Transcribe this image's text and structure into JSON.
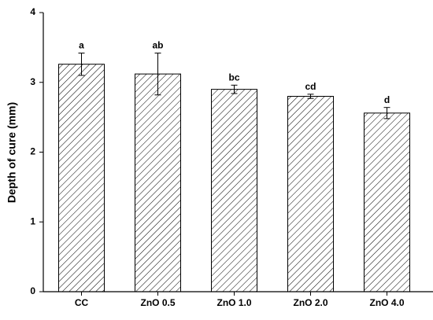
{
  "chart_data": {
    "type": "bar",
    "y_label": "Depth of cure (mm)",
    "categories": [
      "CC",
      "ZnO 0.5",
      "ZnO 1.0",
      "ZnO 2.0",
      "ZnO 4.0"
    ],
    "values": [
      3.26,
      3.12,
      2.9,
      2.8,
      2.56
    ],
    "errors": [
      0.16,
      0.3,
      0.06,
      0.03,
      0.08
    ],
    "annotations": [
      "a",
      "ab",
      "bc",
      "cd",
      "d"
    ],
    "color": "#000000",
    "ylim": [
      0,
      4
    ],
    "yticks": [
      0,
      1,
      2,
      3,
      4
    ]
  }
}
